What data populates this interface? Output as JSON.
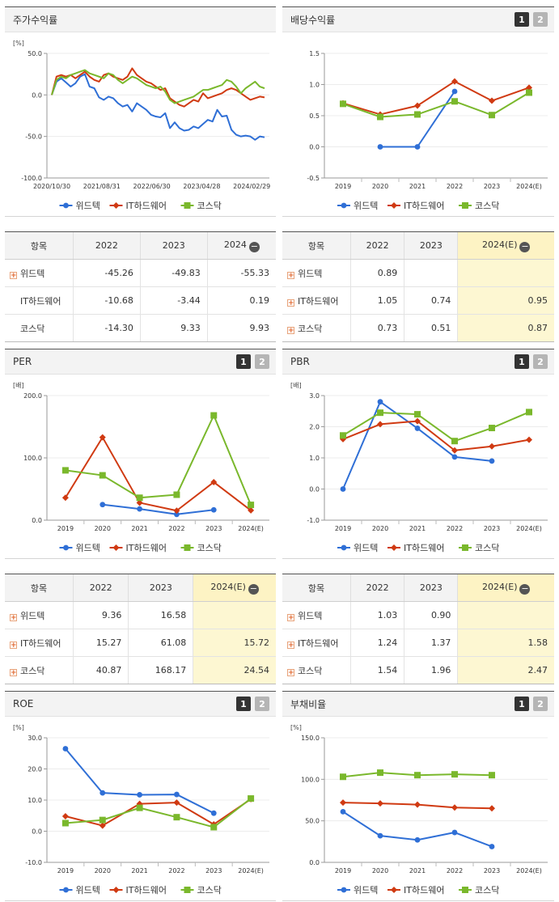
{
  "colors": {
    "widtek": "#2f6fd6",
    "ithw": "#d03a12",
    "kosdaq": "#7ab82c"
  },
  "legend": [
    "위드텍",
    "IT하드웨어",
    "코스닥"
  ],
  "charts": [
    {
      "id": "stock",
      "title": "주가수익률",
      "unit": "[%]",
      "buttons": [],
      "chart_data": {
        "type": "line",
        "ylim": [
          -100,
          50
        ],
        "yticks": [
          -100,
          -50,
          0,
          50
        ],
        "ytick_labels": [
          "-100.0",
          "-50.0",
          "0.0",
          "50.0"
        ],
        "xtick_labels": [
          "2020/10/30",
          "2021/08/31",
          "2022/06/30",
          "2023/04/28",
          "2024/02/29"
        ],
        "xtick_pos": [
          0,
          0.235,
          0.47,
          0.705,
          0.94
        ],
        "series": [
          {
            "name": "위드텍",
            "key": "widtek",
            "values": [
              0,
              16,
              20,
              15,
              10,
              14,
              22,
              25,
              10,
              8,
              -3,
              -6,
              -2,
              -4,
              -10,
              -14,
              -12,
              -20,
              -10,
              -14,
              -18,
              -24,
              -26,
              -27,
              -22,
              -40,
              -33,
              -40,
              -43,
              -42,
              -38,
              -40,
              -35,
              -30,
              -32,
              -18,
              -26,
              -25,
              -42,
              -48,
              -50,
              -49,
              -50,
              -54,
              -50,
              -51
            ]
          },
          {
            "name": "IT하드웨어",
            "key": "ithw",
            "values": [
              0,
              22,
              24,
              22,
              24,
              20,
              24,
              28,
              22,
              18,
              16,
              24,
              26,
              22,
              20,
              18,
              22,
              32,
              24,
              20,
              16,
              14,
              10,
              6,
              8,
              -4,
              -8,
              -12,
              -14,
              -10,
              -6,
              -8,
              2,
              -4,
              -2,
              0,
              2,
              6,
              8,
              6,
              2,
              -2,
              -6,
              -4,
              -2,
              -3
            ]
          },
          {
            "name": "코스닥",
            "key": "kosdaq",
            "values": [
              0,
              18,
              22,
              20,
              24,
              26,
              28,
              30,
              26,
              24,
              22,
              20,
              26,
              24,
              18,
              14,
              18,
              22,
              20,
              16,
              12,
              10,
              8,
              10,
              4,
              -6,
              -10,
              -8,
              -6,
              -4,
              -2,
              2,
              6,
              6,
              8,
              10,
              12,
              18,
              16,
              10,
              2,
              8,
              12,
              16,
              10,
              8
            ]
          }
        ]
      }
    },
    {
      "id": "div",
      "title": "배당수익률",
      "unit": "",
      "buttons": [
        "1",
        "2"
      ],
      "chart_data": {
        "type": "line",
        "ylim": [
          -0.5,
          1.5
        ],
        "yticks": [
          -0.5,
          0,
          0.5,
          1,
          1.5
        ],
        "ytick_labels": [
          "-0.5",
          "0.0",
          "0.5",
          "1.0",
          "1.5"
        ],
        "categories": [
          "2019",
          "2020",
          "2021",
          "2022",
          "2023",
          "2024(E)"
        ],
        "series": [
          {
            "name": "위드텍",
            "key": "widtek",
            "values": [
              null,
              0,
              0,
              0.89,
              null,
              null
            ]
          },
          {
            "name": "IT하드웨어",
            "key": "ithw",
            "values": [
              0.7,
              0.52,
              0.66,
              1.05,
              0.74,
              0.95
            ]
          },
          {
            "name": "코스닥",
            "key": "kosdaq",
            "values": [
              0.69,
              0.48,
              0.52,
              0.73,
              0.51,
              0.87
            ]
          }
        ]
      }
    },
    {
      "id": "per",
      "title": "PER",
      "unit": "[배]",
      "buttons": [
        "1",
        "2"
      ],
      "chart_data": {
        "type": "line",
        "ylim": [
          0,
          200
        ],
        "yticks": [
          0,
          100,
          200
        ],
        "ytick_labels": [
          "0.0",
          "100.0",
          "200.0"
        ],
        "categories": [
          "2019",
          "2020",
          "2021",
          "2022",
          "2023",
          "2024(E)"
        ],
        "series": [
          {
            "name": "위드텍",
            "key": "widtek",
            "values": [
              null,
              25,
              18,
              9.36,
              16.58,
              null
            ]
          },
          {
            "name": "IT하드웨어",
            "key": "ithw",
            "values": [
              36,
              133,
              28,
              15.27,
              61.08,
              15.72
            ]
          },
          {
            "name": "코스닥",
            "key": "kosdaq",
            "values": [
              80,
              72,
              36,
              40.87,
              168.17,
              24.54
            ]
          }
        ]
      }
    },
    {
      "id": "pbr",
      "title": "PBR",
      "unit": "[배]",
      "buttons": [
        "1",
        "2"
      ],
      "chart_data": {
        "type": "line",
        "ylim": [
          -1,
          3
        ],
        "yticks": [
          -1,
          0,
          1,
          2,
          3
        ],
        "ytick_labels": [
          "-1.0",
          "0.0",
          "1.0",
          "2.0",
          "3.0"
        ],
        "categories": [
          "2019",
          "2020",
          "2021",
          "2022",
          "2023",
          "2024(E)"
        ],
        "series": [
          {
            "name": "위드텍",
            "key": "widtek",
            "values": [
              0,
              2.8,
              1.95,
              1.03,
              0.9,
              null
            ]
          },
          {
            "name": "IT하드웨어",
            "key": "ithw",
            "values": [
              1.6,
              2.08,
              2.18,
              1.24,
              1.37,
              1.58
            ]
          },
          {
            "name": "코스닥",
            "key": "kosdaq",
            "values": [
              1.72,
              2.45,
              2.4,
              1.54,
              1.96,
              2.47
            ]
          }
        ]
      }
    },
    {
      "id": "roe",
      "title": "ROE",
      "unit": "[%]",
      "buttons": [
        "1",
        "2"
      ],
      "chart_data": {
        "type": "line",
        "ylim": [
          -10,
          30
        ],
        "yticks": [
          -10,
          0,
          10,
          20,
          30
        ],
        "ytick_labels": [
          "-10.0",
          "0.0",
          "10.0",
          "20.0",
          "30.0"
        ],
        "categories": [
          "2019",
          "2020",
          "2021",
          "2022",
          "2023",
          "2024(E)"
        ],
        "series": [
          {
            "name": "위드텍",
            "key": "widtek",
            "values": [
              26.5,
              12.3,
              11.7,
              11.8,
              5.8,
              null
            ]
          },
          {
            "name": "IT하드웨어",
            "key": "ithw",
            "values": [
              4.8,
              1.8,
              8.8,
              9.2,
              2.2,
              10.3
            ]
          },
          {
            "name": "코스닥",
            "key": "kosdaq",
            "values": [
              2.6,
              3.6,
              7.5,
              4.5,
              1.3,
              10.5
            ]
          }
        ]
      }
    },
    {
      "id": "debt",
      "title": "부채비율",
      "unit": "[%]",
      "buttons": [
        "1",
        "2"
      ],
      "chart_data": {
        "type": "line",
        "ylim": [
          0,
          150
        ],
        "yticks": [
          0,
          50,
          100,
          150
        ],
        "ytick_labels": [
          "0.0",
          "50.0",
          "100.0",
          "150.0"
        ],
        "categories": [
          "2019",
          "2020",
          "2021",
          "2022",
          "2023",
          "2024(E)"
        ],
        "series": [
          {
            "name": "위드텍",
            "key": "widtek",
            "values": [
              61,
              32,
              27,
              36,
              19,
              null
            ]
          },
          {
            "name": "IT하드웨어",
            "key": "ithw",
            "values": [
              72,
              71,
              69.5,
              66,
              65,
              null
            ]
          },
          {
            "name": "코스닥",
            "key": "kosdaq",
            "values": [
              103,
              108,
              105,
              106,
              105,
              null
            ]
          }
        ]
      }
    }
  ],
  "tables": [
    {
      "id": "tbl-stock",
      "headers": [
        "항목",
        "2022",
        "2023",
        "2024"
      ],
      "minus_on_last": true,
      "highlight_last": false,
      "rows": [
        {
          "label": "위드텍",
          "plus": true,
          "values": [
            "-45.26",
            "-49.83",
            "-55.33"
          ]
        },
        {
          "label": "IT하드웨어",
          "plus": false,
          "values": [
            "-10.68",
            "-3.44",
            "0.19"
          ]
        },
        {
          "label": "코스닥",
          "plus": false,
          "values": [
            "-14.30",
            "9.33",
            "9.93"
          ]
        }
      ]
    },
    {
      "id": "tbl-div",
      "headers": [
        "항목",
        "2022",
        "2023",
        "2024(E)"
      ],
      "minus_on_last": true,
      "highlight_last": true,
      "rows": [
        {
          "label": "위드텍",
          "plus": true,
          "values": [
            "0.89",
            "",
            ""
          ]
        },
        {
          "label": "IT하드웨어",
          "plus": true,
          "values": [
            "1.05",
            "0.74",
            "0.95"
          ]
        },
        {
          "label": "코스닥",
          "plus": true,
          "values": [
            "0.73",
            "0.51",
            "0.87"
          ]
        }
      ]
    },
    {
      "id": "tbl-per",
      "headers": [
        "항목",
        "2022",
        "2023",
        "2024(E)"
      ],
      "minus_on_last": true,
      "highlight_last": true,
      "rows": [
        {
          "label": "위드텍",
          "plus": true,
          "values": [
            "9.36",
            "16.58",
            ""
          ]
        },
        {
          "label": "IT하드웨어",
          "plus": true,
          "values": [
            "15.27",
            "61.08",
            "15.72"
          ]
        },
        {
          "label": "코스닥",
          "plus": true,
          "values": [
            "40.87",
            "168.17",
            "24.54"
          ]
        }
      ]
    },
    {
      "id": "tbl-pbr",
      "headers": [
        "항목",
        "2022",
        "2023",
        "2024(E)"
      ],
      "minus_on_last": true,
      "highlight_last": true,
      "rows": [
        {
          "label": "위드텍",
          "plus": true,
          "values": [
            "1.03",
            "0.90",
            ""
          ]
        },
        {
          "label": "IT하드웨어",
          "plus": true,
          "values": [
            "1.24",
            "1.37",
            "1.58"
          ]
        },
        {
          "label": "코스닥",
          "plus": true,
          "values": [
            "1.54",
            "1.96",
            "2.47"
          ]
        }
      ]
    }
  ]
}
